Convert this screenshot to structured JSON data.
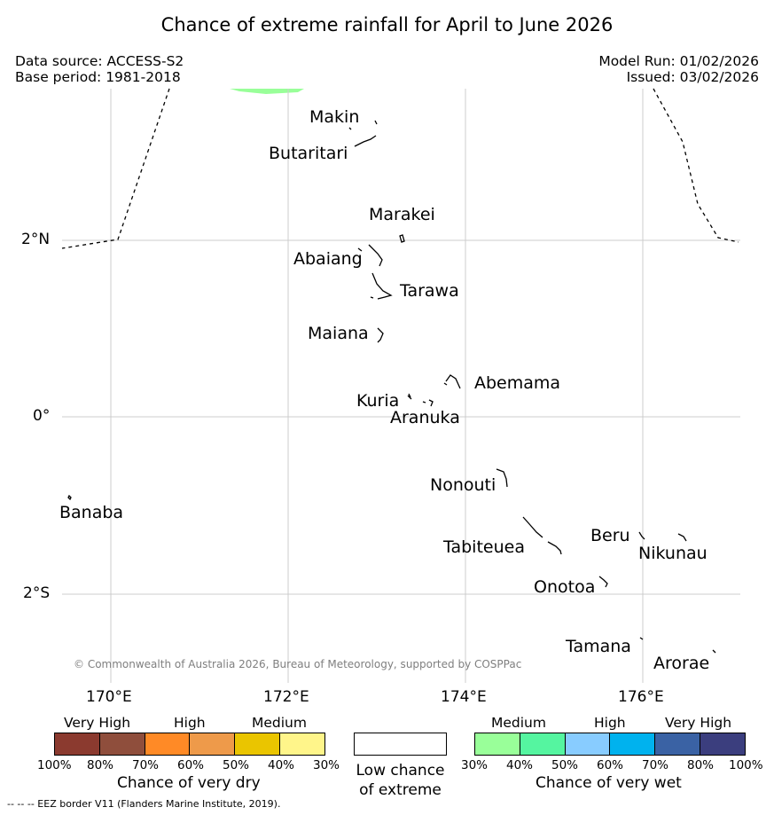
{
  "title": "Chance of extreme rainfall for April to June 2026",
  "meta": {
    "data_source": "Data source: ACCESS-S2",
    "base_period": "Base period: 1981-2018",
    "model_run": "Model Run: 01/02/2026",
    "issued": "Issued: 03/02/2026"
  },
  "map": {
    "lat_labels": [
      "2°N",
      "0°",
      "2°S"
    ],
    "lon_labels": [
      "170°E",
      "172°E",
      "174°E",
      "176°E"
    ],
    "islands": [
      "Makin",
      "Butaritari",
      "Marakei",
      "Abaiang",
      "Tarawa",
      "Maiana",
      "Abemama",
      "Kuria",
      "Aranuka",
      "Banaba",
      "Nonouti",
      "Beru",
      "Nikunau",
      "Tabiteuea",
      "Onotoa",
      "Tamana",
      "Arorae"
    ],
    "copyright": "© Commonwealth of Australia 2026, Bureau of Meteorology, supported by COSPPac",
    "colors": {
      "grid": "#cccccc",
      "eez": "#000000",
      "wet_medium_patch": "#99ff99"
    }
  },
  "legend": {
    "dry": {
      "categories": [
        "Very High",
        "High",
        "Medium"
      ],
      "ticks": [
        "100%",
        "80%",
        "70%",
        "60%",
        "50%",
        "40%",
        "30%"
      ],
      "colors": [
        "#8b3a2f",
        "#8f4e3c",
        "#ff8a26",
        "#ee9a4a",
        "#eac500",
        "#fff58a"
      ],
      "caption": "Chance of very dry"
    },
    "neutral": {
      "caption_line1": "Low chance",
      "caption_line2": "of extreme",
      "color": "#ffffff"
    },
    "wet": {
      "categories": [
        "Medium",
        "High",
        "Very High"
      ],
      "ticks": [
        "30%",
        "40%",
        "50%",
        "60%",
        "70%",
        "80%",
        "100%"
      ],
      "colors": [
        "#99ff99",
        "#55f5a0",
        "#88ccff",
        "#00b2ee",
        "#3a62a4",
        "#3b3e7e"
      ],
      "caption": "Chance of very wet"
    }
  },
  "eez_note": "--  --  -- EEZ border V11 (Flanders Marine Institute, 2019)."
}
